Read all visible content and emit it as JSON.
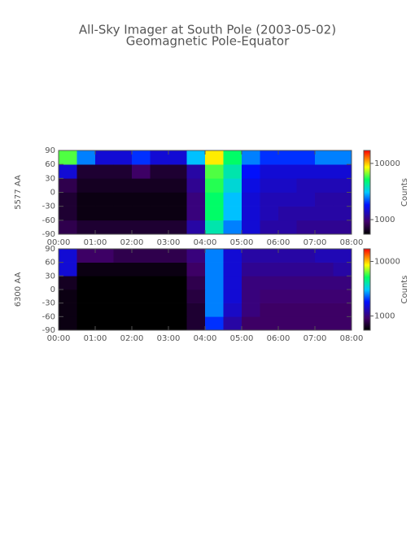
{
  "chart_data": [
    {
      "type": "heatmap",
      "title": "All-Sky Imager at South Pole (2003-05-02)",
      "subtitle": "Geomagnetic Pole-Equator",
      "ylabel": "5577 AA",
      "colorbar_label": "Counts",
      "colormap": "rainbow",
      "zlog": true,
      "xbins": [
        0,
        0.5,
        1,
        1.5,
        2,
        2.5,
        3,
        3.5,
        4,
        4.5,
        5,
        5.5,
        6,
        6.5,
        7,
        7.5,
        8
      ],
      "ybins": [
        -90,
        -60,
        -30,
        0,
        30,
        60,
        90
      ],
      "z": [
        [
          800,
          700,
          700,
          700,
          700,
          700,
          700,
          1200,
          4000,
          2500,
          1500,
          1200,
          1200,
          1100,
          1100,
          1100
        ],
        [
          700,
          600,
          600,
          600,
          600,
          600,
          600,
          1000,
          5000,
          3000,
          1500,
          1300,
          1200,
          1200,
          1200,
          1200
        ],
        [
          700,
          600,
          600,
          600,
          600,
          600,
          600,
          1000,
          5000,
          3000,
          1500,
          1300,
          1300,
          1300,
          1200,
          1200
        ],
        [
          800,
          650,
          650,
          650,
          650,
          650,
          650,
          1100,
          5500,
          3500,
          1600,
          1400,
          1400,
          1300,
          1300,
          1300
        ],
        [
          1500,
          700,
          700,
          700,
          900,
          700,
          700,
          1200,
          6000,
          4000,
          1800,
          1500,
          1500,
          1500,
          1500,
          1500
        ],
        [
          6000,
          2500,
          1500,
          1500,
          2000,
          1500,
          1500,
          3000,
          9000,
          5000,
          2500,
          2000,
          2000,
          2000,
          2500,
          2500
        ]
      ],
      "xlim": [
        0,
        8
      ],
      "xticks": [
        {
          "value": 0,
          "label": "00:00"
        },
        {
          "value": 1,
          "label": "01:00"
        },
        {
          "value": 2,
          "label": "02:00"
        },
        {
          "value": 3,
          "label": "03:00"
        },
        {
          "value": 4,
          "label": "04:00"
        },
        {
          "value": 5,
          "label": "05:00"
        },
        {
          "value": 6,
          "label": "06:00"
        },
        {
          "value": 7,
          "label": "07:00"
        },
        {
          "value": 8,
          "label": "08:00"
        }
      ],
      "ylim": [
        -90,
        90
      ],
      "yticks": [
        -90,
        -60,
        -30,
        0,
        30,
        60,
        90
      ],
      "zlim": [
        550,
        17000
      ],
      "zticks": [
        1000,
        10000
      ]
    },
    {
      "type": "heatmap",
      "ylabel": "6300 AA",
      "colorbar_label": "Counts",
      "colormap": "rainbow",
      "zlog": true,
      "xbins": [
        0,
        0.5,
        1,
        1.5,
        2,
        2.5,
        3,
        3.5,
        4,
        4.5,
        5,
        5.5,
        6,
        6.5,
        7,
        7.5,
        8
      ],
      "ybins": [
        -90,
        -60,
        -30,
        0,
        30,
        60,
        90
      ],
      "z": [
        [
          600,
          550,
          550,
          550,
          550,
          550,
          550,
          700,
          2000,
          1200,
          900,
          900,
          900,
          900,
          900,
          900
        ],
        [
          600,
          500,
          500,
          500,
          500,
          500,
          500,
          700,
          2500,
          1400,
          1000,
          900,
          900,
          900,
          900,
          900
        ],
        [
          600,
          500,
          500,
          500,
          500,
          500,
          500,
          750,
          2500,
          1500,
          1000,
          950,
          950,
          950,
          950,
          950
        ],
        [
          650,
          500,
          500,
          500,
          500,
          500,
          500,
          800,
          2500,
          1500,
          1000,
          1000,
          1000,
          1000,
          1000,
          1000
        ],
        [
          1500,
          600,
          600,
          600,
          600,
          600,
          600,
          900,
          2500,
          1500,
          1100,
          1100,
          1100,
          1100,
          1100,
          1200
        ],
        [
          1500,
          900,
          900,
          800,
          800,
          800,
          800,
          1000,
          2500,
          1500,
          1200,
          1200,
          1200,
          1200,
          1300,
          1300
        ]
      ],
      "xlim": [
        0,
        8
      ],
      "xticks": [
        {
          "value": 0,
          "label": "00:00"
        },
        {
          "value": 1,
          "label": "01:00"
        },
        {
          "value": 2,
          "label": "02:00"
        },
        {
          "value": 3,
          "label": "03:00"
        },
        {
          "value": 4,
          "label": "04:00"
        },
        {
          "value": 5,
          "label": "05:00"
        },
        {
          "value": 6,
          "label": "06:00"
        },
        {
          "value": 7,
          "label": "07:00"
        },
        {
          "value": 8,
          "label": "08:00"
        }
      ],
      "ylim": [
        -90,
        90
      ],
      "yticks": [
        -90,
        -60,
        -30,
        0,
        30,
        60,
        90
      ],
      "zlim": [
        550,
        17000
      ],
      "zticks": [
        1000,
        10000
      ]
    }
  ]
}
